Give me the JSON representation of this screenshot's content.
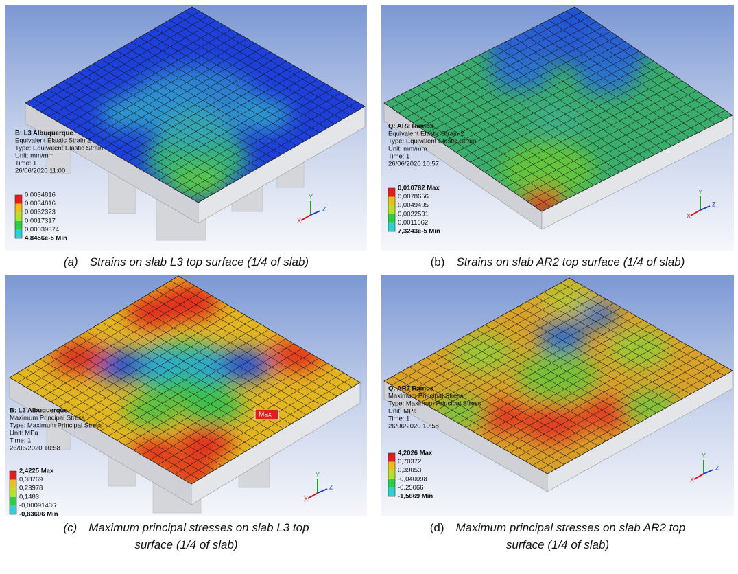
{
  "panels": [
    {
      "title": "B: L3 Albuquerque",
      "lines": [
        "Equivalent Elastic Strain 2",
        "Type: Equivalent Elastic Strain",
        "Unit: mm/mm",
        "Time: 1",
        "26/06/2020 11:00"
      ],
      "legend": [
        "0,0034816",
        "0,0034816",
        "0,0032323",
        "0,0017317",
        "0,00039374",
        "4,8456e-5 Min"
      ],
      "axes": [
        "X",
        "Y",
        "Z"
      ],
      "caption": {
        "label": "(a)",
        "lines": [
          "Strains on slab L3 top surface (1/4 of slab)"
        ]
      }
    },
    {
      "title": "Q: AR2 Ramos",
      "lines": [
        "Equivalent Elastic Strain 2",
        "Type: Equivalent Elastic Strain",
        "Unit: mm/mm",
        "Time: 1",
        "26/06/2020 10:57"
      ],
      "legend": [
        "0,010782 Max",
        "0,0078656",
        "0,0049495",
        "0,0022591",
        "0,0011662",
        "7,3243e-5 Min"
      ],
      "axes": [
        "X",
        "Y",
        "Z"
      ],
      "caption": {
        "label": "(b)",
        "lines": [
          "Strains on slab AR2 top surface (1/4 of slab)"
        ]
      }
    },
    {
      "title": "B: L3 Albuquerque",
      "lines": [
        "Maximum Principal Stress",
        "Type: Maximum Principal Stress",
        "Unit: MPa",
        "Time: 1",
        "26/06/2020 10:58"
      ],
      "legend": [
        "2,4225 Max",
        "0,38769",
        "0,23978",
        "0,1483",
        "-0,00091436",
        "-0,83606 Min"
      ],
      "axes": [
        "X",
        "Y",
        "Z"
      ],
      "tag": "Max",
      "caption": {
        "label": "(c)",
        "lines": [
          "Maximum principal stresses on slab L3 top",
          "surface (1/4 of slab)"
        ]
      }
    },
    {
      "title": "Q: AR2 Ramos",
      "lines": [
        "Maximum Principal Stress",
        "Type: Maximum Principal Stress",
        "Unit: MPa",
        "Time: 1",
        "26/06/2020 10:58"
      ],
      "legend": [
        "4,2026 Max",
        "0,70372",
        "0,39053",
        "-0,040098",
        "-0,25066",
        "-1,5669 Min"
      ],
      "axes": [
        "X",
        "Y",
        "Z"
      ],
      "caption": {
        "label": "(d)",
        "lines": [
          "Maximum principal stresses on slab AR2 top",
          "surface (1/4 of slab)"
        ]
      }
    }
  ]
}
